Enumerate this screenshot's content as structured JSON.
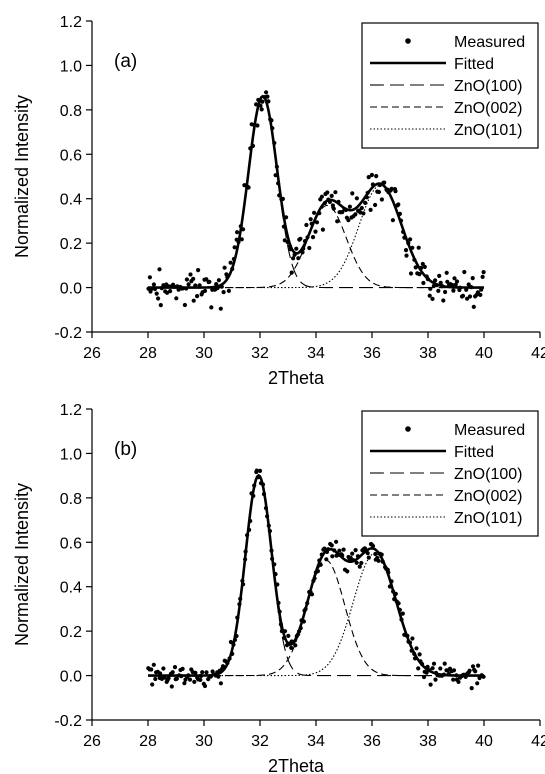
{
  "chart_data": [
    {
      "type": "scatter",
      "panel_label": "(a)",
      "xlabel": "2Theta",
      "ylabel": "Normalized Intensity",
      "xlim": [
        26,
        42
      ],
      "ylim": [
        -0.2,
        1.2
      ],
      "xticks": [
        "26",
        "28",
        "30",
        "32",
        "34",
        "36",
        "38",
        "40",
        "42"
      ],
      "yticks": [
        "-0.2",
        "0.0",
        "0.2",
        "0.4",
        "0.6",
        "0.8",
        "1.0",
        "1.2"
      ],
      "legend_position": "top-right",
      "grid": false,
      "series": [
        {
          "name": "Measured",
          "style": "dots",
          "noise_amplitude": 0.07,
          "x_range": [
            28,
            40
          ]
        },
        {
          "name": "Fitted",
          "style": "solid-thick"
        },
        {
          "name": "ZnO(100)",
          "style": "long-dash",
          "peak": {
            "center": 32.1,
            "height": 0.86,
            "fwhm": 1.2
          }
        },
        {
          "name": "ZnO(002)",
          "style": "dash",
          "peak": {
            "center": 34.4,
            "height": 0.37,
            "fwhm": 1.6
          }
        },
        {
          "name": "ZnO(101)",
          "style": "dotted",
          "peak": {
            "center": 36.3,
            "height": 0.46,
            "fwhm": 1.8
          }
        }
      ]
    },
    {
      "type": "scatter",
      "panel_label": "(b)",
      "xlabel": "2Theta",
      "ylabel": "Normalized Intensity",
      "xlim": [
        26,
        42
      ],
      "ylim": [
        -0.2,
        1.2
      ],
      "xticks": [
        "26",
        "28",
        "30",
        "32",
        "34",
        "36",
        "38",
        "40",
        "42"
      ],
      "yticks": [
        "-0.2",
        "0.0",
        "0.2",
        "0.4",
        "0.6",
        "0.8",
        "1.0",
        "1.2"
      ],
      "legend_position": "top-right",
      "grid": false,
      "series": [
        {
          "name": "Measured",
          "style": "dots",
          "noise_amplitude": 0.04,
          "x_range": [
            28,
            40
          ]
        },
        {
          "name": "Fitted",
          "style": "solid-thick"
        },
        {
          "name": "ZnO(100)",
          "style": "long-dash",
          "peak": {
            "center": 31.95,
            "height": 0.9,
            "fwhm": 1.1
          }
        },
        {
          "name": "ZnO(002)",
          "style": "dash",
          "peak": {
            "center": 34.35,
            "height": 0.52,
            "fwhm": 1.6
          }
        },
        {
          "name": "ZnO(101)",
          "style": "dotted",
          "peak": {
            "center": 36.1,
            "height": 0.55,
            "fwhm": 1.8
          }
        }
      ]
    }
  ]
}
